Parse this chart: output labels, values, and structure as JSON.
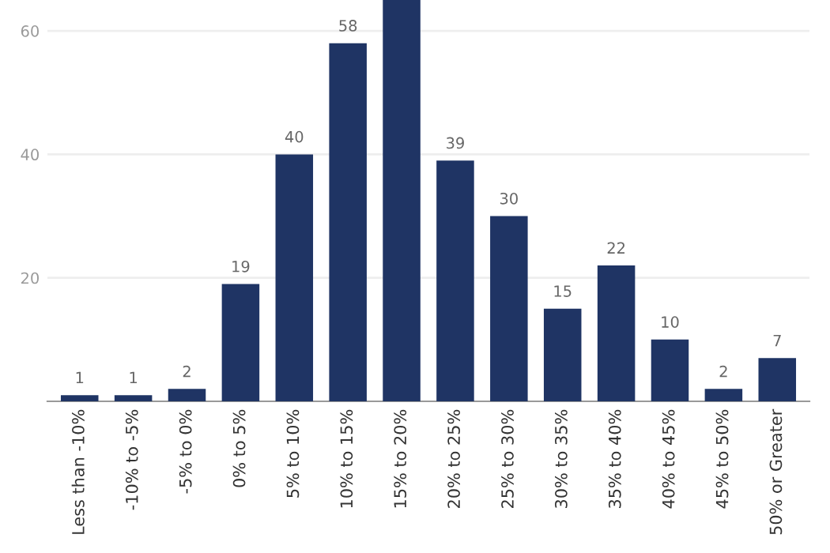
{
  "chart_data": {
    "type": "bar",
    "categories": [
      "Less than -10%",
      "-10% to -5%",
      "-5% to 0%",
      "0% to 5%",
      "5% to 10%",
      "10% to 15%",
      "15% to 20%",
      "20% to 25%",
      "25% to 30%",
      "30% to 35%",
      "35% to 40%",
      "40% to 45%",
      "45% to 50%",
      "50% or Greater"
    ],
    "values": [
      1,
      1,
      2,
      19,
      40,
      58,
      65,
      39,
      30,
      15,
      22,
      10,
      2,
      7
    ],
    "value_labels": [
      "1",
      "1",
      "2",
      "19",
      "40",
      "58",
      null,
      "39",
      "30",
      "15",
      "22",
      "10",
      "2",
      "7"
    ],
    "color": "#1f3464",
    "ylim": [
      0,
      65
    ],
    "yticks": [
      20,
      40,
      60
    ],
    "grid": "y",
    "legend": false
  }
}
